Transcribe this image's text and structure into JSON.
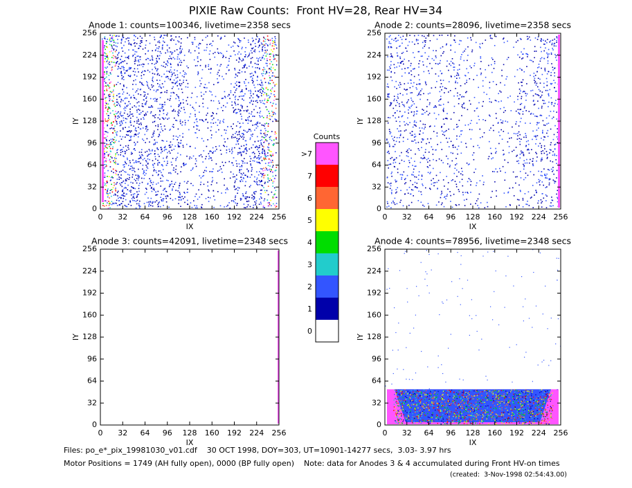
{
  "title": "PIXIE Raw Counts:  Front HV=28, Rear HV=34",
  "chart_data": [
    {
      "type": "image",
      "title": "Anode 1: counts=100346, livetime=2358 secs",
      "xlabel": "IX",
      "ylabel": "IY",
      "xlim": [
        0,
        256
      ],
      "ylim": [
        0,
        256
      ],
      "xticks": [
        0,
        32,
        64,
        96,
        128,
        160,
        192,
        224,
        256
      ],
      "yticks": [
        0,
        32,
        64,
        96,
        128,
        160,
        192,
        224,
        256
      ]
    },
    {
      "type": "image",
      "title": "Anode 2: counts=28096, livetime=2358 secs",
      "xlabel": "IX",
      "ylabel": "IY",
      "xlim": [
        0,
        256
      ],
      "ylim": [
        0,
        256
      ],
      "xticks": [
        0,
        32,
        64,
        96,
        128,
        160,
        192,
        224,
        256
      ],
      "yticks": [
        0,
        32,
        64,
        96,
        128,
        160,
        192,
        224,
        256
      ]
    },
    {
      "type": "image",
      "title": "Anode 3: counts=42091, livetime=2348 secs",
      "xlabel": "IX",
      "ylabel": "IY",
      "xlim": [
        0,
        256
      ],
      "ylim": [
        0,
        256
      ],
      "xticks": [
        0,
        32,
        64,
        96,
        128,
        160,
        192,
        224,
        256
      ],
      "yticks": [
        0,
        32,
        64,
        96,
        128,
        160,
        192,
        224,
        256
      ]
    },
    {
      "type": "image",
      "title": "Anode 4: counts=78956, livetime=2348 secs",
      "xlabel": "IX",
      "ylabel": "IY",
      "xlim": [
        0,
        256
      ],
      "ylim": [
        0,
        256
      ],
      "xticks": [
        0,
        32,
        64,
        96,
        128,
        160,
        192,
        224,
        256
      ],
      "yticks": [
        0,
        32,
        64,
        96,
        128,
        160,
        192,
        224,
        256
      ]
    }
  ],
  "colorbar": {
    "title": "Counts",
    "labels": [
      ">7",
      "7",
      "6",
      "5",
      "4",
      "3",
      "2",
      "1",
      "0"
    ],
    "colors": [
      "#ff55ff",
      "#ff0000",
      "#ff6633",
      "#ffff00",
      "#00dd00",
      "#22cccc",
      "#3355ff",
      "#0000aa",
      "#ffffff"
    ]
  },
  "footer": {
    "files": "Files: po_e*_pix_19981030_v01.cdf    30 OCT 1998, DOY=303, UT=10901-14277 secs,  3.03- 3.97 hrs",
    "motor": "Motor Positions = 1749 (AH fully open), 0000 (BP fully open)    Note: data for Anodes 3 & 4 accumulated during Front HV-on times",
    "created": "(created:  3-Nov-1998 02:54:43.00)"
  }
}
